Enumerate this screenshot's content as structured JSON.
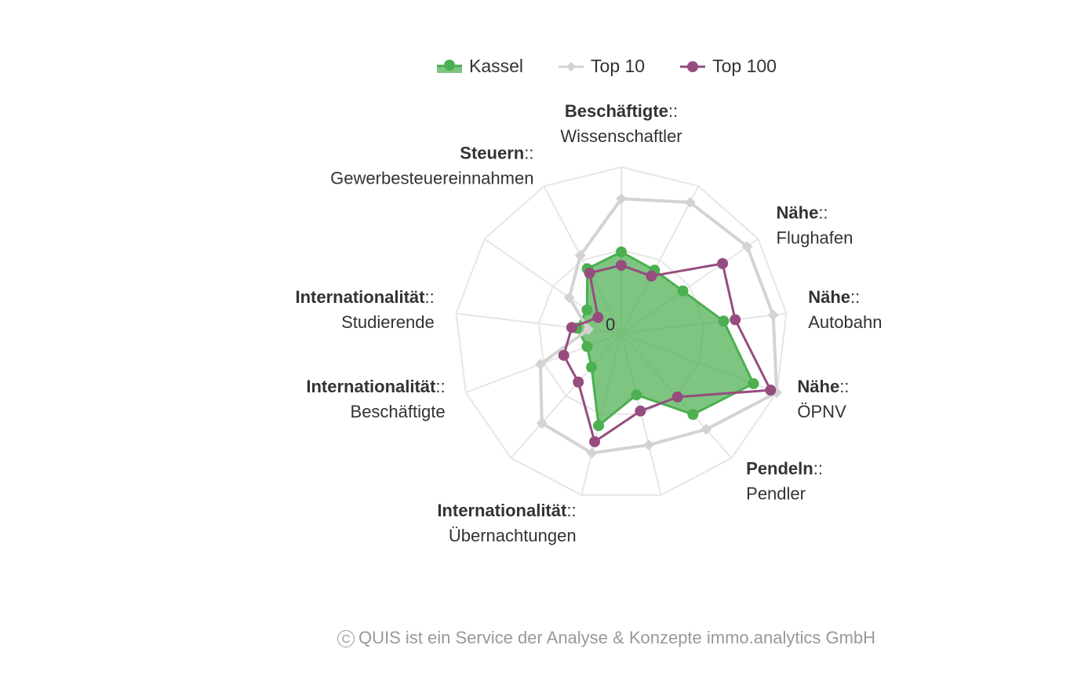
{
  "chart_data": {
    "type": "radar",
    "title": "",
    "axes": [
      {
        "group": "Beschäftigte",
        "name": "Wissenschaftler",
        "label_shown": true
      },
      {
        "group": "",
        "name": "",
        "label_shown": false
      },
      {
        "group": "Nähe",
        "name": "Flughafen",
        "label_shown": true
      },
      {
        "group": "Nähe",
        "name": "Autobahn",
        "label_shown": true
      },
      {
        "group": "Nähe",
        "name": "ÖPNV",
        "label_shown": true
      },
      {
        "group": "Pendeln",
        "name": "Pendler",
        "label_shown": true
      },
      {
        "group": "",
        "name": "",
        "label_shown": false
      },
      {
        "group": "Internationalität",
        "name": "Übernachtungen",
        "label_shown": true
      },
      {
        "group": "",
        "name": "",
        "label_shown": false
      },
      {
        "group": "Internationalität",
        "name": "Beschäftigte",
        "label_shown": true
      },
      {
        "group": "Internationalität",
        "name": "Studierende",
        "label_shown": true
      },
      {
        "group": "",
        "name": "",
        "label_shown": false
      },
      {
        "group": "Steuern",
        "name": "Gewerbesteuereinnahmen",
        "label_shown": true
      }
    ],
    "label_separator": "::",
    "radial_axis": {
      "min": 0,
      "max": 100,
      "grid_levels": [
        50,
        100
      ],
      "tick_labels": [
        "0"
      ]
    },
    "series": [
      {
        "name": "Kassel",
        "color": "#4caf50",
        "fill": "#4caf50",
        "fill_opacity": 0.72,
        "marker": "circle",
        "values": [
          49,
          43,
          45,
          62,
          85,
          65,
          38,
          57,
          27,
          22,
          27,
          25,
          44
        ]
      },
      {
        "name": "Top 10",
        "color": "#d3d3d3",
        "marker": "diamond",
        "values": [
          81,
          89,
          92,
          92,
          100,
          77,
          69,
          74,
          72,
          52,
          20,
          38,
          53
        ]
      },
      {
        "name": "Top 100",
        "color": "#974c7f",
        "marker": "circle",
        "values": [
          41,
          39,
          74,
          69,
          96,
          51,
          48,
          67,
          39,
          37,
          30,
          17,
          41
        ]
      }
    ],
    "legend_position": "top-center",
    "grid": true
  },
  "footer": {
    "copyright_symbol": "C",
    "text": "QUIS ist ein Service der Analyse & Konzepte immo.analytics GmbH"
  }
}
